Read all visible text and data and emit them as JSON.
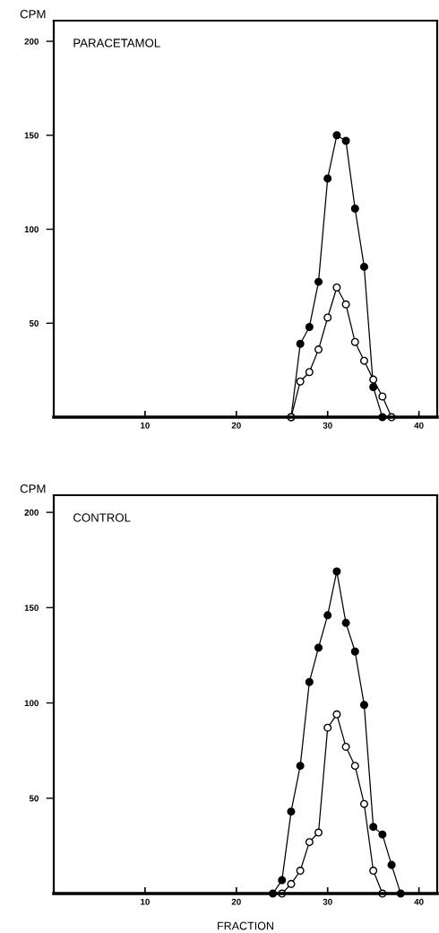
{
  "chart_data": [
    {
      "type": "line",
      "title": "PARACETAMOL",
      "ylabel": "CPM",
      "xlim": [
        0,
        42
      ],
      "ylim": [
        0,
        211
      ],
      "xticks": [
        10,
        20,
        30,
        40
      ],
      "yticks": [
        50,
        100,
        150,
        200
      ],
      "marker": "circle",
      "line_style": "solid",
      "grid": false,
      "legend": false,
      "series": [
        {
          "color": "#000000",
          "x": [
            26,
            27,
            28,
            29,
            30,
            31,
            32,
            33,
            34,
            35,
            36
          ],
          "values": [
            0,
            39,
            48,
            72,
            127,
            150,
            147,
            111,
            80,
            16,
            0
          ]
        },
        {
          "color": "#ffffff",
          "x": [
            26,
            27,
            28,
            29,
            30,
            31,
            32,
            33,
            34,
            35,
            36,
            37
          ],
          "values": [
            0,
            19,
            24,
            36,
            53,
            69,
            60,
            40,
            30,
            20,
            11,
            0
          ]
        }
      ]
    },
    {
      "type": "line",
      "title": "CONTROL",
      "ylabel": "CPM",
      "xlabel": "FRACTION",
      "xlim": [
        0,
        42
      ],
      "ylim": [
        0,
        209
      ],
      "xticks": [
        10,
        20,
        30,
        40
      ],
      "yticks": [
        50,
        100,
        150,
        200
      ],
      "marker": "circle",
      "line_style": "solid",
      "grid": false,
      "legend": false,
      "series": [
        {
          "color": "#000000",
          "x": [
            24,
            25,
            26,
            27,
            28,
            29,
            30,
            31,
            32,
            33,
            34,
            35,
            36,
            37,
            38
          ],
          "values": [
            0,
            7,
            43,
            67,
            111,
            129,
            146,
            169,
            142,
            127,
            99,
            35,
            31,
            15,
            0
          ]
        },
        {
          "color": "#ffffff",
          "x": [
            25,
            26,
            27,
            28,
            29,
            30,
            31,
            32,
            33,
            34,
            35,
            36
          ],
          "values": [
            0,
            5,
            12,
            27,
            32,
            87,
            94,
            77,
            67,
            47,
            12,
            0
          ]
        }
      ]
    }
  ]
}
